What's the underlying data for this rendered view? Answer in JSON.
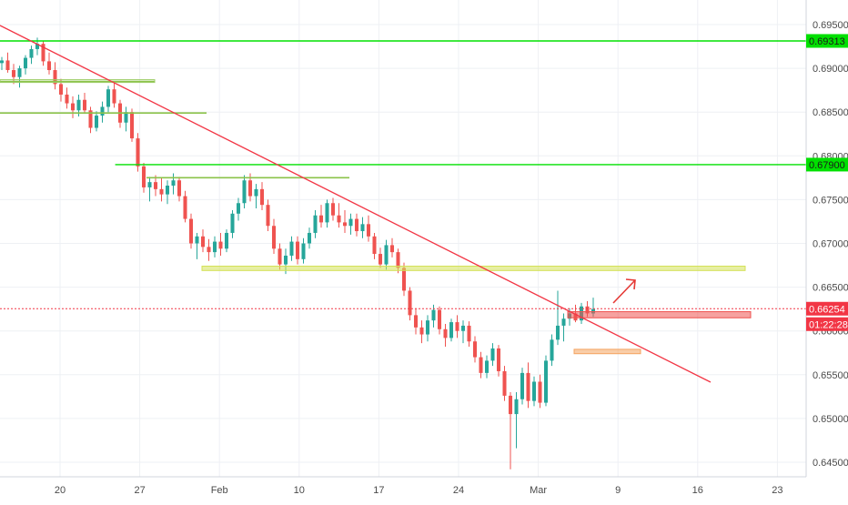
{
  "chart_data": {
    "type": "candlestick",
    "title": "",
    "xlabel": "",
    "ylabel": "",
    "ylim": [
      0.6437,
      0.6969
    ],
    "x_ticks": [
      "20",
      "27",
      "Feb",
      "10",
      "17",
      "24",
      "Mar",
      "9",
      "16",
      "23"
    ],
    "y_ticks": [
      "0.69500",
      "0.69000",
      "0.68500",
      "0.68000",
      "0.67500",
      "0.67000",
      "0.66500",
      "0.66000",
      "0.65500",
      "0.65000",
      "0.64500"
    ],
    "y_tick_values": [
      0.695,
      0.69,
      0.685,
      0.68,
      0.675,
      0.67,
      0.665,
      0.66,
      0.655,
      0.65,
      0.645
    ],
    "price_labels": [
      {
        "text": "0.69313",
        "value": 0.69313,
        "color": "#00e000"
      },
      {
        "text": "0.67900",
        "value": 0.679,
        "color": "#00e000"
      },
      {
        "text": "0.66254",
        "value": 0.66254,
        "color": "#f23645"
      },
      {
        "text": "01:22:28",
        "value": 0.66,
        "color": "#f23645"
      }
    ],
    "last_price": 0.66254,
    "countdown": "01:22:28",
    "horizontal_levels": [
      {
        "value": 0.69313,
        "color": "#00e000",
        "extends": "full"
      },
      {
        "value": 0.679,
        "color": "#00e000",
        "extends": "from-27-jan"
      }
    ],
    "annotation_lines": [
      {
        "value": 0.6885,
        "color": "#8bc34a",
        "span": "17-jan to 27-jan"
      },
      {
        "value": 0.6849,
        "color": "#8bc34a",
        "span": "to 30-jan"
      },
      {
        "value": 0.6775,
        "color": "#8bc34a",
        "span": "28-jan to 13-feb"
      }
    ],
    "zones": [
      {
        "low": 0.6669,
        "high": 0.6674,
        "color": "#d4e157",
        "span": "31-jan to 19-mar"
      },
      {
        "low": 0.6615,
        "high": 0.6622,
        "color": "#ef5350",
        "span": "4-mar to 19-mar"
      },
      {
        "low": 0.6574,
        "high": 0.6579,
        "color": "#f4a460",
        "span": "4-mar to 10-mar"
      }
    ],
    "trendline": {
      "from": {
        "date": "13-jan",
        "value": 0.6962
      },
      "to": {
        "date": "15-mar",
        "value": 0.6543
      },
      "color": "#f23645"
    },
    "arrow": {
      "direction": "up-right",
      "color": "#e53935",
      "from": {
        "date": "9-mar",
        "value": 0.6624
      },
      "to": {
        "date": "10-mar",
        "value": 0.6655
      }
    },
    "colors": {
      "up": "#26a69a",
      "down": "#ef5350",
      "grid": "#eef0f4",
      "axis_text": "#4a4a4a"
    },
    "candles": [
      [
        0.6906,
        0.6913,
        0.6898,
        0.6909
      ],
      [
        0.6909,
        0.6918,
        0.6895,
        0.6898
      ],
      [
        0.6898,
        0.6905,
        0.6882,
        0.689
      ],
      [
        0.689,
        0.6903,
        0.6878,
        0.69
      ],
      [
        0.69,
        0.6915,
        0.6893,
        0.6912
      ],
      [
        0.6912,
        0.6926,
        0.6905,
        0.6922
      ],
      [
        0.6922,
        0.6935,
        0.6915,
        0.6928
      ],
      [
        0.6928,
        0.6931,
        0.6903,
        0.6908
      ],
      [
        0.6908,
        0.6918,
        0.6893,
        0.6898
      ],
      [
        0.6898,
        0.6907,
        0.6876,
        0.6882
      ],
      [
        0.6882,
        0.6888,
        0.6862,
        0.687
      ],
      [
        0.687,
        0.6878,
        0.6854,
        0.686
      ],
      [
        0.686,
        0.6868,
        0.6843,
        0.6852
      ],
      [
        0.6852,
        0.687,
        0.6845,
        0.6864
      ],
      [
        0.6864,
        0.6872,
        0.6848,
        0.6852
      ],
      [
        0.6852,
        0.6856,
        0.6826,
        0.6832
      ],
      [
        0.6832,
        0.6851,
        0.6828,
        0.6846
      ],
      [
        0.6846,
        0.6862,
        0.6838,
        0.6856
      ],
      [
        0.6856,
        0.688,
        0.685,
        0.6876
      ],
      [
        0.6876,
        0.6884,
        0.6855,
        0.686
      ],
      [
        0.686,
        0.6864,
        0.6832,
        0.6838
      ],
      [
        0.6838,
        0.6856,
        0.6828,
        0.685
      ],
      [
        0.685,
        0.6854,
        0.6816,
        0.682
      ],
      [
        0.682,
        0.6826,
        0.6782,
        0.6788
      ],
      [
        0.6788,
        0.6792,
        0.6758,
        0.6764
      ],
      [
        0.6764,
        0.6776,
        0.6748,
        0.677
      ],
      [
        0.677,
        0.6778,
        0.6754,
        0.6762
      ],
      [
        0.6762,
        0.6775,
        0.6748,
        0.6756
      ],
      [
        0.6756,
        0.6772,
        0.6745,
        0.6766
      ],
      [
        0.6766,
        0.678,
        0.6756,
        0.6772
      ],
      [
        0.6772,
        0.6776,
        0.6748,
        0.6754
      ],
      [
        0.6754,
        0.676,
        0.6724,
        0.6728
      ],
      [
        0.6728,
        0.6734,
        0.6694,
        0.67
      ],
      [
        0.67,
        0.6712,
        0.6682,
        0.6708
      ],
      [
        0.6708,
        0.6716,
        0.669,
        0.6696
      ],
      [
        0.6696,
        0.6705,
        0.668,
        0.669
      ],
      [
        0.669,
        0.6708,
        0.6684,
        0.6702
      ],
      [
        0.6702,
        0.6712,
        0.6686,
        0.6694
      ],
      [
        0.6694,
        0.6716,
        0.669,
        0.6712
      ],
      [
        0.6712,
        0.6738,
        0.6706,
        0.6734
      ],
      [
        0.6734,
        0.6752,
        0.6726,
        0.6746
      ],
      [
        0.6746,
        0.6778,
        0.674,
        0.6772
      ],
      [
        0.6772,
        0.678,
        0.6748,
        0.6754
      ],
      [
        0.6754,
        0.6768,
        0.674,
        0.6762
      ],
      [
        0.6762,
        0.677,
        0.6738,
        0.6744
      ],
      [
        0.6744,
        0.675,
        0.6714,
        0.672
      ],
      [
        0.672,
        0.6728,
        0.6688,
        0.6694
      ],
      [
        0.6694,
        0.67,
        0.667,
        0.6676
      ],
      [
        0.6676,
        0.6694,
        0.6665,
        0.6686
      ],
      [
        0.6686,
        0.6708,
        0.668,
        0.6702
      ],
      [
        0.6702,
        0.6708,
        0.6676,
        0.6682
      ],
      [
        0.6682,
        0.6706,
        0.6677,
        0.67
      ],
      [
        0.67,
        0.6718,
        0.6694,
        0.6712
      ],
      [
        0.6712,
        0.6738,
        0.6706,
        0.6732
      ],
      [
        0.6732,
        0.6744,
        0.6718,
        0.6724
      ],
      [
        0.6724,
        0.675,
        0.6718,
        0.6746
      ],
      [
        0.6746,
        0.6752,
        0.6726,
        0.6732
      ],
      [
        0.6732,
        0.6746,
        0.6718,
        0.6724
      ],
      [
        0.6724,
        0.6738,
        0.6712,
        0.672
      ],
      [
        0.672,
        0.6734,
        0.671,
        0.6728
      ],
      [
        0.6728,
        0.6734,
        0.6708,
        0.6714
      ],
      [
        0.6714,
        0.673,
        0.6706,
        0.6722
      ],
      [
        0.6722,
        0.6732,
        0.6702,
        0.6708
      ],
      [
        0.6708,
        0.6712,
        0.6682,
        0.6688
      ],
      [
        0.6688,
        0.6695,
        0.6672,
        0.6676
      ],
      [
        0.6676,
        0.6704,
        0.667,
        0.6698
      ],
      [
        0.6698,
        0.6706,
        0.6684,
        0.669
      ],
      [
        0.669,
        0.6694,
        0.6666,
        0.6672
      ],
      [
        0.6672,
        0.6678,
        0.664,
        0.6646
      ],
      [
        0.6646,
        0.665,
        0.6612,
        0.6618
      ],
      [
        0.6618,
        0.6626,
        0.6596,
        0.6604
      ],
      [
        0.6604,
        0.6612,
        0.6586,
        0.6596
      ],
      [
        0.6596,
        0.6618,
        0.6588,
        0.6612
      ],
      [
        0.6612,
        0.663,
        0.6604,
        0.6624
      ],
      [
        0.6624,
        0.6628,
        0.6596,
        0.6602
      ],
      [
        0.6602,
        0.6608,
        0.6582,
        0.6592
      ],
      [
        0.6592,
        0.6614,
        0.6588,
        0.661
      ],
      [
        0.661,
        0.6618,
        0.6592,
        0.66
      ],
      [
        0.66,
        0.6612,
        0.6586,
        0.6606
      ],
      [
        0.6606,
        0.6611,
        0.6582,
        0.6588
      ],
      [
        0.6588,
        0.6594,
        0.6564,
        0.657
      ],
      [
        0.657,
        0.6576,
        0.6546,
        0.6552
      ],
      [
        0.6552,
        0.6572,
        0.6546,
        0.6566
      ],
      [
        0.6566,
        0.6586,
        0.656,
        0.658
      ],
      [
        0.658,
        0.6584,
        0.6548,
        0.6554
      ],
      [
        0.6554,
        0.656,
        0.652,
        0.6526
      ],
      [
        0.6526,
        0.653,
        0.6442,
        0.6505
      ],
      [
        0.6505,
        0.653,
        0.6466,
        0.6522
      ],
      [
        0.6522,
        0.6558,
        0.6516,
        0.6552
      ],
      [
        0.6552,
        0.6564,
        0.6512,
        0.652
      ],
      [
        0.652,
        0.6548,
        0.6514,
        0.6542
      ],
      [
        0.6542,
        0.655,
        0.6512,
        0.6518
      ],
      [
        0.6518,
        0.6572,
        0.6514,
        0.6566
      ],
      [
        0.6566,
        0.6596,
        0.656,
        0.659
      ],
      [
        0.659,
        0.6646,
        0.6584,
        0.6606
      ],
      [
        0.6606,
        0.662,
        0.6588,
        0.6614
      ],
      [
        0.6614,
        0.6626,
        0.6606,
        0.662
      ],
      [
        0.662,
        0.663,
        0.661,
        0.6612
      ],
      [
        0.6612,
        0.6632,
        0.6608,
        0.6628
      ],
      [
        0.6628,
        0.6634,
        0.6616,
        0.662
      ],
      [
        0.662,
        0.6638,
        0.6616,
        0.6625
      ]
    ]
  }
}
